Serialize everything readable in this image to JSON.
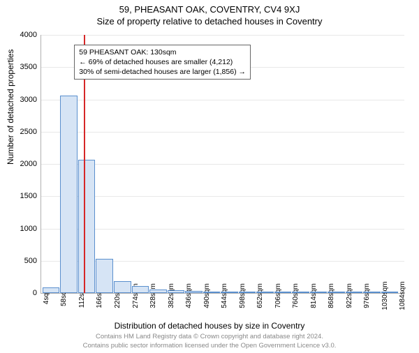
{
  "titles": {
    "main": "59, PHEASANT OAK, COVENTRY, CV4 9XJ",
    "sub": "Size of property relative to detached houses in Coventry"
  },
  "axes": {
    "ylabel": "Number of detached properties",
    "xlabel": "Distribution of detached houses by size in Coventry",
    "ylim": [
      0,
      4000
    ],
    "yticks": [
      0,
      500,
      1000,
      1500,
      2000,
      2500,
      3000,
      3500,
      4000
    ],
    "xticks": [
      "4sqm",
      "58sqm",
      "112sqm",
      "166sqm",
      "220sqm",
      "274sqm",
      "328sqm",
      "382sqm",
      "436sqm",
      "490sqm",
      "544sqm",
      "598sqm",
      "652sqm",
      "706sqm",
      "760sqm",
      "814sqm",
      "868sqm",
      "922sqm",
      "976sqm",
      "1030sqm",
      "1084sqm"
    ],
    "xtick_step": 54,
    "xlim": [
      0,
      1100
    ]
  },
  "marker": {
    "value_sqm": 130,
    "line_color": "#d62728",
    "box_lines": [
      "59 PHEASANT OAK: 130sqm",
      "← 69% of detached houses are smaller (4,212)",
      "30% of semi-detached houses are larger (1,856) →"
    ],
    "box_left_sqm": 100,
    "box_top_yval": 3850,
    "box_border": "#666666",
    "box_bg": "#ffffff"
  },
  "histogram": {
    "type": "histogram",
    "bin_width_sqm": 54,
    "bar_fill": "#d6e4f5",
    "bar_stroke": "#5a8fce",
    "bars": [
      {
        "x": 4,
        "count": 90
      },
      {
        "x": 58,
        "count": 3060
      },
      {
        "x": 112,
        "count": 2060
      },
      {
        "x": 166,
        "count": 530
      },
      {
        "x": 220,
        "count": 180
      },
      {
        "x": 274,
        "count": 110
      },
      {
        "x": 328,
        "count": 55
      },
      {
        "x": 382,
        "count": 40
      },
      {
        "x": 436,
        "count": 30
      },
      {
        "x": 490,
        "count": 15
      },
      {
        "x": 544,
        "count": 8
      },
      {
        "x": 598,
        "count": 5
      },
      {
        "x": 652,
        "count": 5
      },
      {
        "x": 706,
        "count": 3
      },
      {
        "x": 760,
        "count": 2
      },
      {
        "x": 814,
        "count": 2
      },
      {
        "x": 868,
        "count": 2
      },
      {
        "x": 922,
        "count": 1
      },
      {
        "x": 976,
        "count": 1
      },
      {
        "x": 1030,
        "count": 1
      }
    ]
  },
  "footer": {
    "line1": "Contains HM Land Registry data © Crown copyright and database right 2024.",
    "line2": "Contains public sector information licensed under the Open Government Licence v3.0."
  },
  "style": {
    "background_color": "#ffffff",
    "grid_color": "#e8e8e8",
    "axis_color": "#b0b0b0",
    "title_fontsize": 13,
    "label_fontsize": 12,
    "tick_fontsize": 11,
    "footer_color": "#888888"
  }
}
